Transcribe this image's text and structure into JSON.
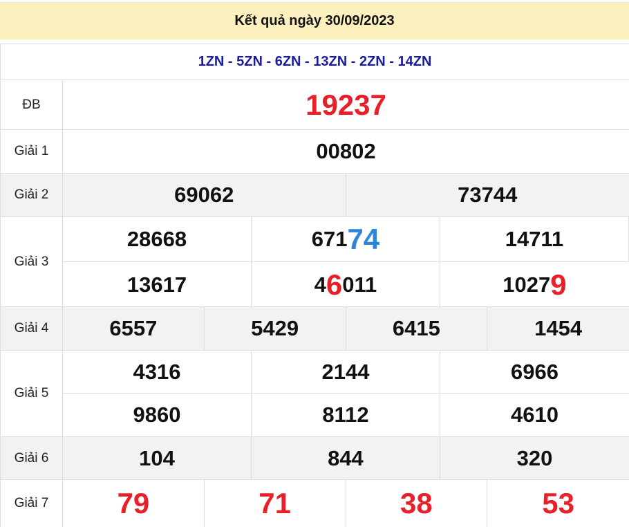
{
  "header": {
    "title": "Kết quả ngày 30/09/2023"
  },
  "codes": "1ZN - 5ZN - 6ZN - 13ZN - 2ZN - 14ZN",
  "colors": {
    "header_bg": "#fdf0bf",
    "red": "#e8202a",
    "blue": "#2f86d9",
    "codes": "#1a1aa6"
  },
  "prizes": {
    "db": {
      "label": "ĐB",
      "values": [
        "19237"
      ]
    },
    "g1": {
      "label": "Giải 1",
      "values": [
        "00802"
      ]
    },
    "g2": {
      "label": "Giải 2",
      "values": [
        "69062",
        "73744"
      ]
    },
    "g3": {
      "label": "Giải 3",
      "values": [
        {
          "pre": "28668",
          "hl": "",
          "post": ""
        },
        {
          "pre": "671",
          "hl": "74",
          "post": "",
          "hl_color": "#2f86d9"
        },
        {
          "pre": "14711",
          "hl": "",
          "post": ""
        },
        {
          "pre": "13617",
          "hl": "",
          "post": ""
        },
        {
          "pre": "4",
          "hl": "6",
          "post": "011",
          "hl_color": "#e8202a"
        },
        {
          "pre": "1027",
          "hl": "9",
          "post": "",
          "hl_color": "#e8202a"
        }
      ]
    },
    "g4": {
      "label": "Giải 4",
      "values": [
        "6557",
        "5429",
        "6415",
        "1454"
      ]
    },
    "g5": {
      "label": "Giải 5",
      "values": [
        "4316",
        "2144",
        "6966",
        "9860",
        "8112",
        "4610"
      ]
    },
    "g6": {
      "label": "Giải 6",
      "values": [
        "104",
        "844",
        "320"
      ]
    },
    "g7": {
      "label": "Giải 7",
      "values": [
        "79",
        "71",
        "38",
        "53"
      ]
    }
  }
}
